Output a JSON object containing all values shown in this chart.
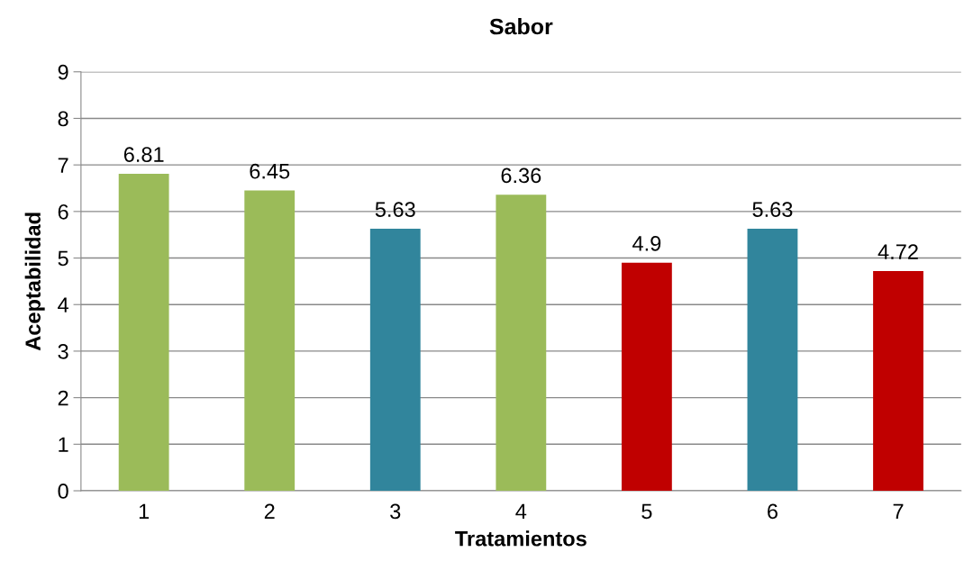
{
  "chart_data": {
    "type": "bar",
    "title": "Sabor",
    "xlabel": "Tratamientos",
    "ylabel": "Aceptabilidad",
    "categories": [
      "1",
      "2",
      "3",
      "4",
      "5",
      "6",
      "7"
    ],
    "values": [
      6.81,
      6.45,
      5.63,
      6.36,
      4.9,
      5.63,
      4.72
    ],
    "colors": [
      "#9bbb59",
      "#9bbb59",
      "#31859c",
      "#9bbb59",
      "#c00000",
      "#31859c",
      "#c00000"
    ],
    "ylim": [
      0,
      9
    ],
    "yticks": [
      0,
      1,
      2,
      3,
      4,
      5,
      6,
      7,
      8,
      9
    ],
    "grid": "y",
    "data_labels": true
  }
}
